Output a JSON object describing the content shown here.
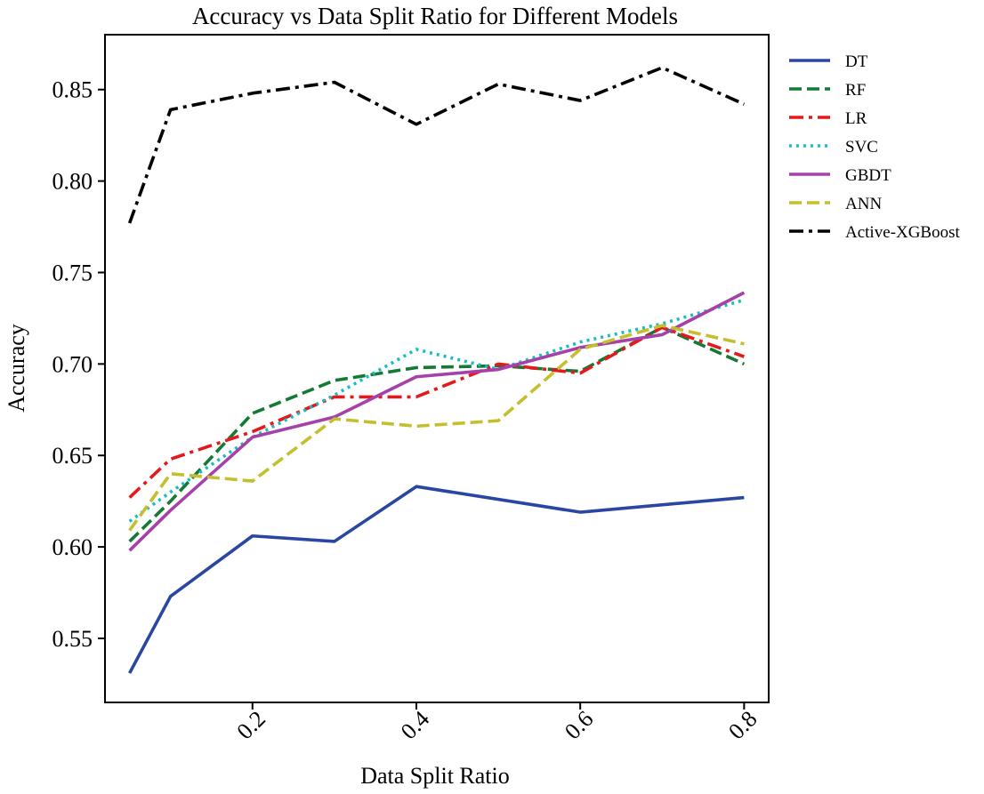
{
  "chart_data": {
    "type": "line",
    "title": "Accuracy vs Data Split Ratio for Different Models",
    "xlabel": "Data Split Ratio",
    "ylabel": "Accuracy",
    "xlim": [
      0.02,
      0.83
    ],
    "ylim": [
      0.515,
      0.88
    ],
    "x_ticks": [
      0.2,
      0.4,
      0.6,
      0.8
    ],
    "x_tick_labels": [
      "0.2",
      "0.4",
      "0.6",
      "0.8"
    ],
    "y_ticks": [
      0.55,
      0.6,
      0.65,
      0.7,
      0.75,
      0.8,
      0.85
    ],
    "y_tick_labels": [
      "0.55",
      "0.60",
      "0.65",
      "0.70",
      "0.75",
      "0.80",
      "0.85"
    ],
    "x": [
      0.05,
      0.1,
      0.2,
      0.3,
      0.4,
      0.5,
      0.6,
      0.7,
      0.8
    ],
    "grid": false,
    "legend_position": "outside-right",
    "series": [
      {
        "name": "DT",
        "color": "#2a46a3",
        "dash": "solid",
        "values": [
          0.531,
          0.573,
          0.606,
          0.603,
          0.633,
          null,
          0.619,
          null,
          0.627
        ]
      },
      {
        "name": "RF",
        "color": "#147a33",
        "dash": "dashed",
        "values": [
          0.603,
          0.625,
          0.673,
          0.691,
          0.698,
          0.699,
          0.696,
          0.72,
          0.7
        ]
      },
      {
        "name": "LR",
        "color": "#e5191c",
        "dash": "dashdot",
        "values": [
          0.627,
          0.648,
          0.663,
          0.682,
          0.682,
          0.7,
          0.695,
          0.72,
          0.704
        ]
      },
      {
        "name": "SVC",
        "color": "#17bdc4",
        "dash": "dotted",
        "values": [
          0.614,
          0.63,
          0.66,
          0.683,
          0.708,
          0.697,
          0.712,
          0.722,
          0.735
        ]
      },
      {
        "name": "GBDT",
        "color": "#a541a8",
        "dash": "solid",
        "values": [
          0.598,
          0.62,
          0.66,
          0.671,
          0.693,
          0.697,
          0.709,
          0.716,
          0.739
        ]
      },
      {
        "name": "ANN",
        "color": "#c4bf2c",
        "dash": "dashed",
        "values": [
          0.609,
          0.64,
          0.636,
          0.67,
          0.666,
          0.669,
          0.708,
          0.721,
          0.711
        ]
      },
      {
        "name": "Active-XGBoost",
        "color": "#000000",
        "dash": "dashdot",
        "values": [
          0.777,
          0.839,
          0.848,
          0.854,
          0.831,
          0.853,
          0.844,
          0.862,
          0.842
        ]
      }
    ]
  }
}
